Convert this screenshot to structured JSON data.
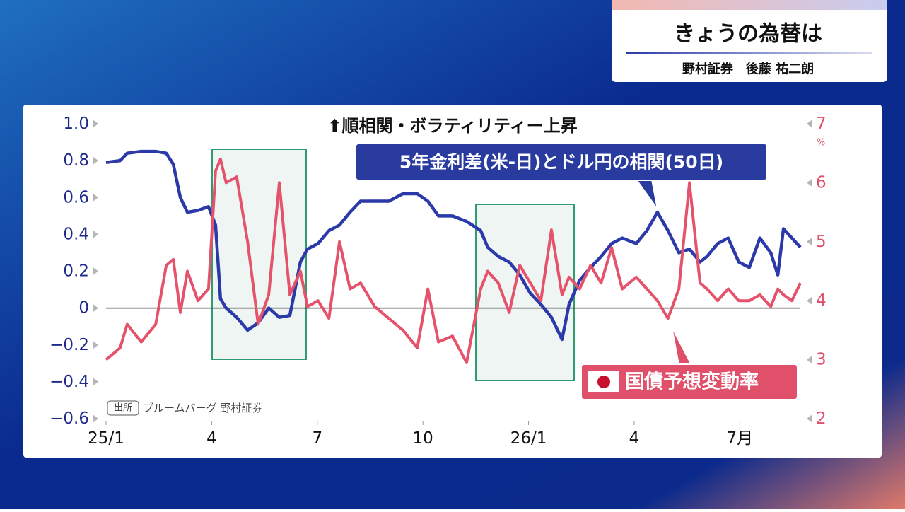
{
  "header": {
    "title": "きょうの為替は",
    "subtitle": "野村証券　後藤 祐二朗"
  },
  "chart_data": {
    "type": "line",
    "title": "⬆順相関・ボラティリティー上昇",
    "source_label": "出所",
    "source": "ブルームバーグ 野村証券",
    "y2_unit": "%",
    "x": [
      0,
      0.4,
      0.6,
      1.0,
      1.41,
      1.71,
      1.91,
      2.11,
      2.31,
      2.61,
      2.91,
      3.11,
      3.25,
      3.41,
      3.71,
      4.02,
      4.32,
      4.62,
      4.92,
      5.22,
      5.52,
      5.72,
      6.02,
      6.33,
      6.63,
      6.93,
      7.23,
      7.63,
      8.03,
      8.43,
      8.84,
      9.14,
      9.44,
      9.84,
      10.24,
      10.64,
      10.84,
      11.14,
      11.45,
      11.75,
      12.05,
      12.35,
      12.65,
      12.95,
      13.15,
      13.45,
      13.76,
      14.06,
      14.36,
      14.66,
      15.06,
      15.36,
      15.66,
      15.96,
      16.27,
      16.57,
      16.87,
      17.07,
      17.37,
      17.67,
      17.97,
      18.27,
      18.57,
      18.88,
      19.08,
      19.24,
      19.48,
      19.72
    ],
    "xlim": [
      0,
      19.72
    ],
    "xticks": [
      {
        "value": 0,
        "label": "25/1"
      },
      {
        "value": 3,
        "label": "4"
      },
      {
        "value": 6,
        "label": "7"
      },
      {
        "value": 9,
        "label": "10"
      },
      {
        "value": 12,
        "label": "26/1"
      },
      {
        "value": 15,
        "label": "4"
      },
      {
        "value": 18,
        "label": "7月"
      }
    ],
    "ylim": [
      -0.6,
      1.0
    ],
    "yticks": [
      {
        "value": -0.6,
        "label": "−0.6"
      },
      {
        "value": -0.4,
        "label": "−0.4"
      },
      {
        "value": -0.2,
        "label": "−0.2"
      },
      0,
      0.2,
      0.4,
      0.6,
      0.8,
      {
        "value": 1.0,
        "label": "1.0"
      }
    ],
    "y2lim": [
      2,
      7
    ],
    "y2ticks": [
      2,
      3,
      4,
      5,
      6,
      7
    ],
    "zero_line": true,
    "series": [
      {
        "name": "5年金利差(米-日)とドル円の相関(50日)",
        "color": "#2b3aa8",
        "axis": "y",
        "values": [
          0.79,
          0.8,
          0.84,
          0.85,
          0.85,
          0.84,
          0.78,
          0.6,
          0.52,
          0.53,
          0.55,
          0.45,
          0.05,
          0,
          -0.05,
          -0.12,
          -0.08,
          0,
          -0.05,
          -0.04,
          0.25,
          0.32,
          0.35,
          0.42,
          0.45,
          0.52,
          0.58,
          0.58,
          0.58,
          0.62,
          0.62,
          0.58,
          0.5,
          0.5,
          0.47,
          0.42,
          0.33,
          0.28,
          0.25,
          0.18,
          0.08,
          0.02,
          -0.05,
          -0.17,
          0.02,
          0.15,
          0.22,
          0.28,
          0.35,
          0.38,
          0.35,
          0.42,
          0.52,
          0.42,
          0.3,
          0.32,
          0.25,
          0.28,
          0.35,
          0.38,
          0.25,
          0.22,
          0.38,
          0.3,
          0.18,
          0.43,
          0.38,
          0.33
        ]
      },
      {
        "name": "国債予想変動率",
        "color": "#e5526b",
        "axis": "y2",
        "values": [
          3.0,
          3.2,
          3.6,
          3.3,
          3.6,
          4.6,
          4.7,
          3.8,
          4.5,
          4.0,
          4.2,
          6.2,
          6.4,
          6.0,
          6.1,
          5.0,
          3.6,
          4.1,
          6.0,
          4.1,
          4.5,
          3.9,
          4.0,
          3.7,
          5.0,
          4.2,
          4.3,
          3.9,
          3.7,
          3.5,
          3.2,
          4.2,
          3.3,
          3.4,
          2.95,
          4.2,
          4.5,
          4.3,
          3.8,
          4.6,
          4.3,
          4.0,
          5.2,
          4.1,
          4.4,
          4.2,
          4.6,
          4.3,
          4.9,
          4.2,
          4.4,
          4.2,
          4.0,
          3.7,
          4.2,
          6.0,
          4.3,
          4.2,
          4.0,
          4.2,
          4.0,
          4.0,
          4.1,
          3.9,
          4.2,
          4.1,
          4.0,
          4.3
        ]
      }
    ]
  }
}
